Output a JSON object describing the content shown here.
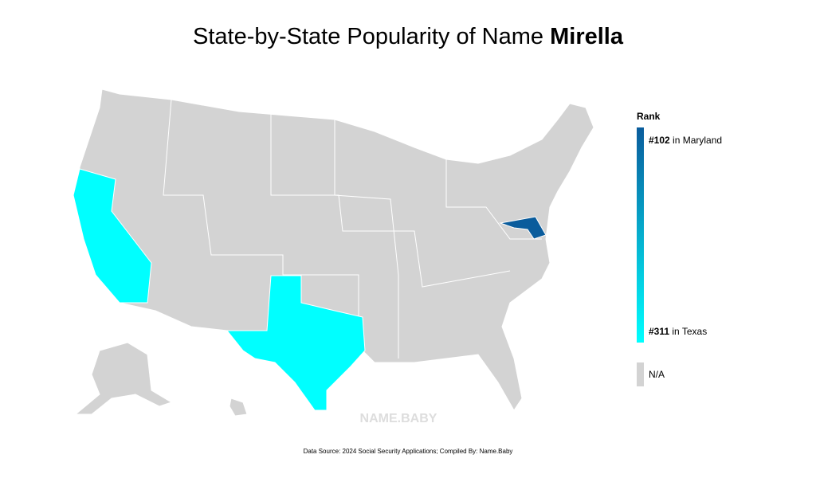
{
  "title": {
    "prefix": "State-by-State Popularity of Name",
    "name": "Mirella"
  },
  "legend": {
    "title": "Rank",
    "top": {
      "rank": "#102",
      "state": "in Maryland",
      "color": "#0a5c9c"
    },
    "bottom": {
      "rank": "#311",
      "state": "in Texas",
      "color": "#00ffff"
    },
    "na": {
      "label": "N/A",
      "color": "#d3d3d3"
    }
  },
  "watermark": "NAME.BABY",
  "source": "Data Source: 2024 Social Security Applications; Compiled By: Name.Baby"
}
